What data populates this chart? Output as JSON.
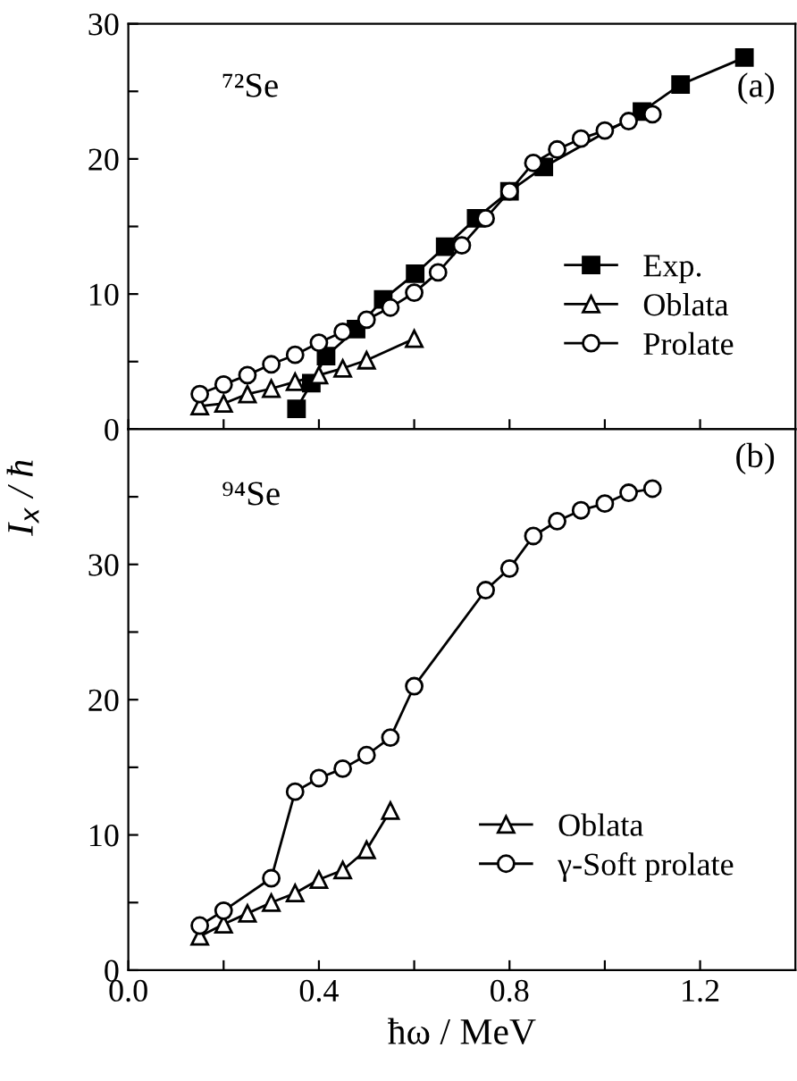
{
  "chart_data": [
    {
      "type": "line",
      "ylabel": "I$_{x}$ / ħ",
      "annotations": [
        "⁷²Se",
        "(a)"
      ],
      "legend": "center right",
      "tick_labels": "y",
      "grid": false,
      "xlim": [
        0.0,
        1.4
      ],
      "xticks": [
        {
          "value": 0.0,
          "label": null
        },
        {
          "value": 0.2,
          "label": null
        },
        {
          "value": 0.4,
          "label": null
        },
        {
          "value": 0.6,
          "label": null
        },
        {
          "value": 0.8,
          "label": null
        },
        {
          "value": 1.0,
          "label": null
        },
        {
          "value": 1.2,
          "label": null
        }
      ],
      "ylim": [
        0,
        30
      ],
      "yticks": [
        0,
        {
          "value": 5,
          "label": null
        },
        10,
        {
          "value": 15,
          "label": null
        },
        20,
        {
          "value": 25,
          "label": null
        },
        30
      ],
      "series": [
        {
          "name": "Exp.",
          "color": "#000000",
          "marker": "square",
          "x": [
            0.353,
            0.384,
            0.415,
            0.478,
            0.535,
            0.602,
            0.665,
            0.73,
            0.8,
            0.872,
            1.078,
            1.159,
            1.293
          ],
          "values": [
            1.5,
            3.4,
            5.4,
            7.4,
            9.6,
            11.5,
            13.5,
            15.6,
            17.6,
            19.4,
            23.5,
            25.5,
            27.5
          ]
        },
        {
          "name": "Oblata",
          "color": "#000000",
          "marker": "triangle",
          "x": [
            0.15,
            0.2,
            0.25,
            0.3,
            0.35,
            0.4,
            0.45,
            0.5,
            0.6
          ],
          "values": [
            1.7,
            1.9,
            2.6,
            3.0,
            3.5,
            4.0,
            4.5,
            5.1,
            6.7
          ]
        },
        {
          "name": "Prolate",
          "color": "#000000",
          "marker": "circle",
          "x": [
            0.15,
            0.2,
            0.25,
            0.3,
            0.35,
            0.4,
            0.45,
            0.5,
            0.55,
            0.6,
            0.65,
            0.7,
            0.75,
            0.8,
            0.85,
            0.9,
            0.95,
            1.0,
            1.05,
            1.1
          ],
          "values": [
            2.6,
            3.3,
            4.0,
            4.8,
            5.5,
            6.4,
            7.2,
            8.1,
            9.0,
            10.1,
            11.6,
            13.6,
            15.6,
            17.6,
            19.7,
            20.7,
            21.5,
            22.1,
            22.8,
            23.3
          ]
        }
      ]
    },
    {
      "type": "line",
      "xlabel": "ħω / MeV",
      "annotations": [
        "⁹⁴Se",
        "(b)"
      ],
      "legend": "bottom right",
      "grid": false,
      "xlim": [
        0.0,
        1.4
      ],
      "xticks": [
        {
          "value": 0.0,
          "label": "0.0"
        },
        {
          "value": 0.2,
          "label": null
        },
        0.4,
        {
          "value": 0.6,
          "label": null
        },
        0.8,
        {
          "value": 1.0,
          "label": null
        },
        1.2
      ],
      "ylim": [
        0,
        40
      ],
      "yticks": [
        0,
        {
          "value": 5,
          "label": null
        },
        10,
        {
          "value": 15,
          "label": null
        },
        20,
        {
          "value": 25,
          "label": null
        },
        30,
        {
          "value": 35,
          "label": null
        }
      ],
      "series": [
        {
          "name": "Oblata",
          "color": "#000000",
          "marker": "triangle",
          "x": [
            0.15,
            0.2,
            0.25,
            0.3,
            0.35,
            0.4,
            0.45,
            0.5,
            0.55
          ],
          "values": [
            2.5,
            3.4,
            4.2,
            5.0,
            5.7,
            6.7,
            7.4,
            8.9,
            11.8
          ]
        },
        {
          "name": "γ-Soft prolate",
          "color": "#000000",
          "marker": "circle",
          "x": [
            0.15,
            0.2,
            0.3,
            0.35,
            0.4,
            0.45,
            0.5,
            0.55,
            0.6,
            0.75,
            0.8,
            0.85,
            0.9,
            0.95,
            1.0,
            1.05,
            1.1
          ],
          "values": [
            3.3,
            4.4,
            6.8,
            13.2,
            14.2,
            14.9,
            15.9,
            17.2,
            21.0,
            28.1,
            29.7,
            32.1,
            33.2,
            34.0,
            34.5,
            35.3,
            35.6
          ]
        }
      ]
    }
  ]
}
